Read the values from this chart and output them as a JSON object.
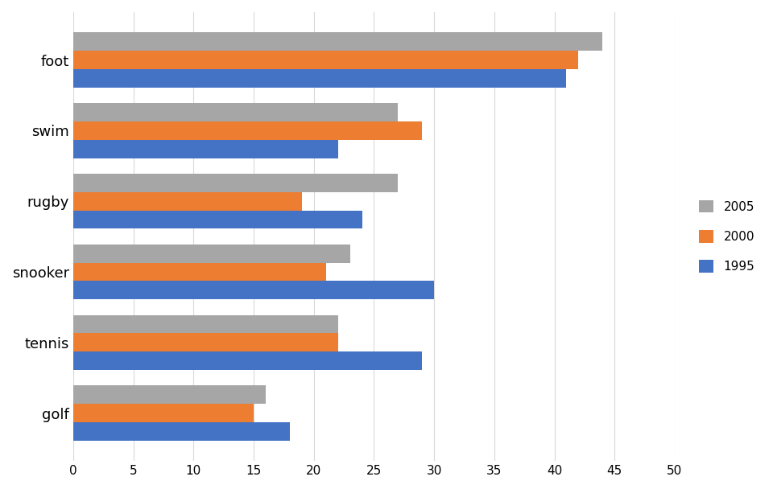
{
  "categories": [
    "foot",
    "swim",
    "rugby",
    "snooker",
    "tennis",
    "golf"
  ],
  "series": {
    "2005": [
      44,
      27,
      27,
      23,
      22,
      16
    ],
    "2000": [
      42,
      29,
      19,
      21,
      22,
      15
    ],
    "1995": [
      41,
      22,
      24,
      30,
      29,
      18
    ]
  },
  "colors": {
    "2005": "#a6a6a6",
    "2000": "#ed7d31",
    "1995": "#4472c4"
  },
  "legend_labels": [
    "2005",
    "2000",
    "1995"
  ],
  "xlim": [
    0,
    50
  ],
  "xticks": [
    0,
    5,
    10,
    15,
    20,
    25,
    30,
    35,
    40,
    45,
    50
  ],
  "bar_height": 0.26,
  "grid_color": "#d9d9d9",
  "background_color": "#ffffff",
  "tick_fontsize": 11,
  "label_fontsize": 13
}
